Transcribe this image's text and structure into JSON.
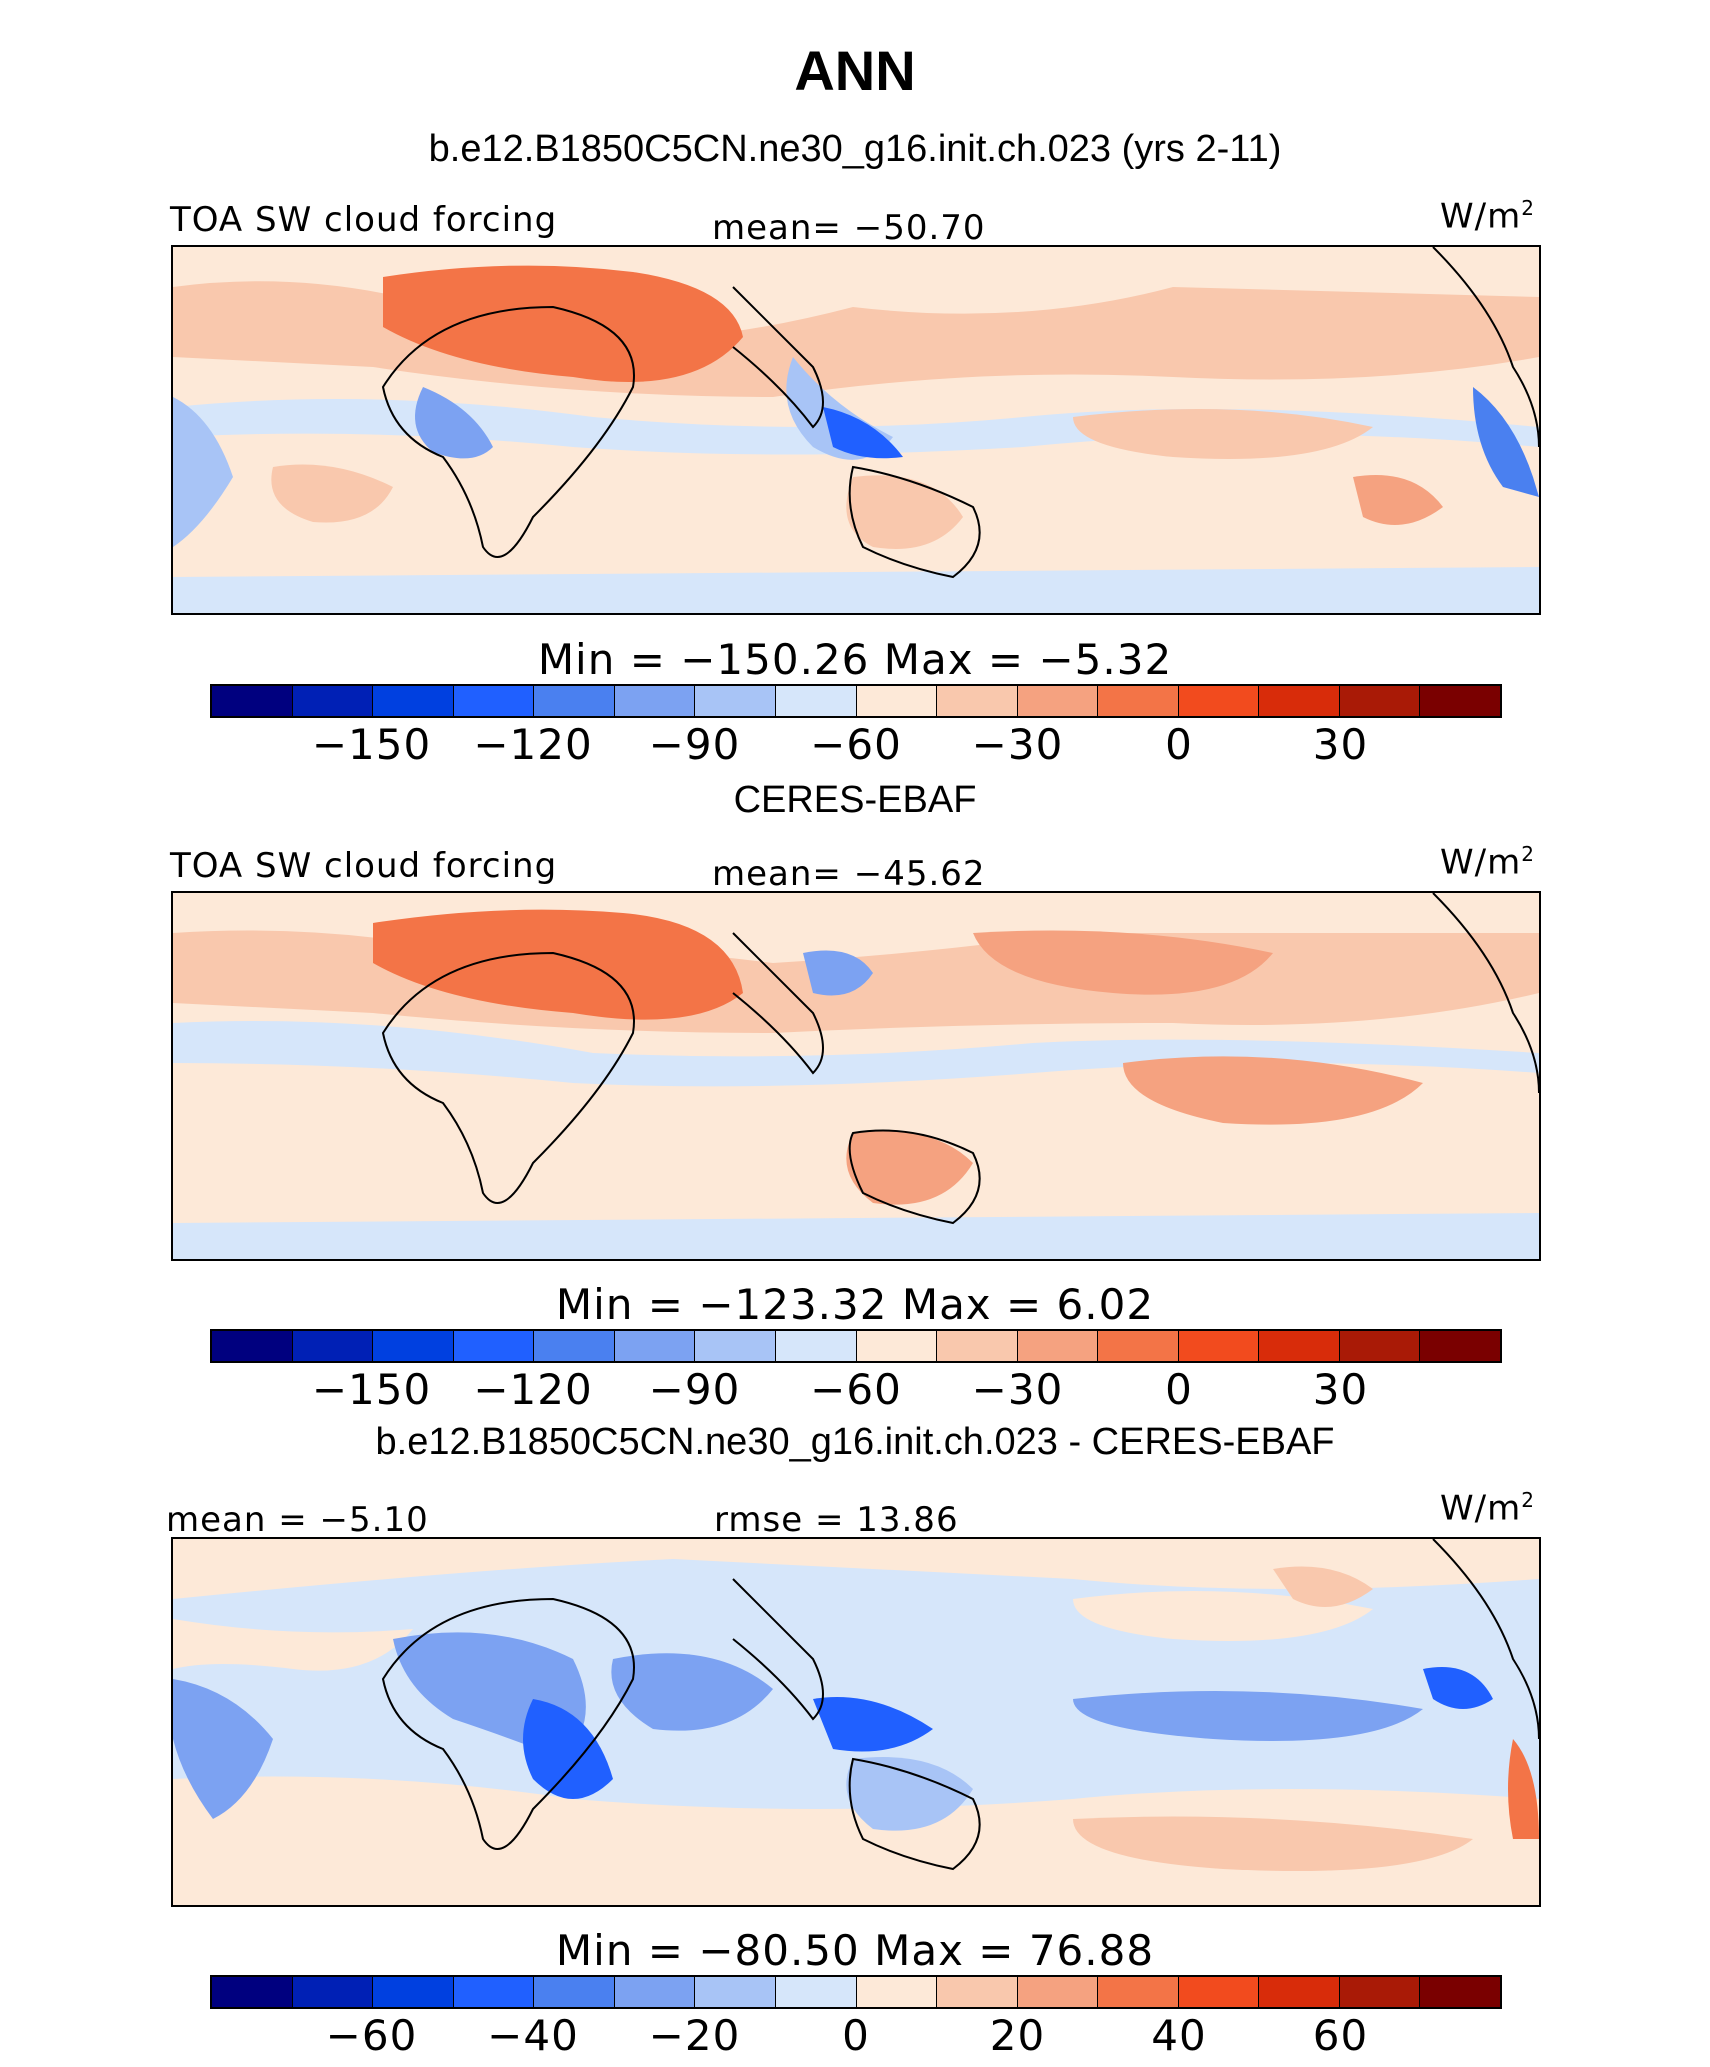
{
  "title": "ANN",
  "colors": [
    "#00007f",
    "#0020b5",
    "#0040e0",
    "#2060ff",
    "#4a80f0",
    "#7ca2f2",
    "#a8c4f6",
    "#d6e6fa",
    "#fde9d8",
    "#f9c8ad",
    "#f5a280",
    "#f37447",
    "#f24b1e",
    "#d82c0a",
    "#a91a06",
    "#7a0000"
  ],
  "land_color": "#000000",
  "chart_data": [
    {
      "type": "heatmap",
      "panel_title": "b.e12.B1850C5CN.ne30_g16.init.ch.023 (yrs 2-11)",
      "left_label": "TOA SW cloud forcing",
      "center_label": "mean=  −50.70",
      "units": "W/m",
      "units_exp": "2",
      "min_max": "Min  =  −150.26  Max  =    −5.32",
      "min": -150.26,
      "max": -5.32,
      "mean": -50.7,
      "colorbar_ticks": [
        "−150",
        "−120",
        "−90",
        "−60",
        "−30",
        "0",
        "30"
      ],
      "colorbar_tick_boundaries": [
        2,
        4,
        6,
        8,
        10,
        12,
        14
      ]
    },
    {
      "type": "heatmap",
      "panel_title": "CERES-EBAF",
      "left_label": "TOA SW cloud forcing",
      "center_label": "mean=  −45.62",
      "units": "W/m",
      "units_exp": "2",
      "min_max": "Min  =  −123.32  Max  =     6.02",
      "min": -123.32,
      "max": 6.02,
      "mean": -45.62,
      "colorbar_ticks": [
        "−150",
        "−120",
        "−90",
        "−60",
        "−30",
        "0",
        "30"
      ],
      "colorbar_tick_boundaries": [
        2,
        4,
        6,
        8,
        10,
        12,
        14
      ]
    },
    {
      "type": "heatmap",
      "panel_title": "b.e12.B1850C5CN.ne30_g16.init.ch.023 - CERES-EBAF",
      "left_label": "mean =   −5.10",
      "center_label": "rmse =   13.86",
      "units": "W/m",
      "units_exp": "2",
      "min_max": "Min  =  −80.50  Max  =   76.88",
      "min": -80.5,
      "max": 76.88,
      "mean": -5.1,
      "rmse": 13.86,
      "colorbar_ticks": [
        "−60",
        "−40",
        "−20",
        "0",
        "20",
        "40",
        "60"
      ],
      "colorbar_tick_boundaries": [
        2,
        4,
        6,
        8,
        10,
        12,
        14
      ]
    }
  ]
}
